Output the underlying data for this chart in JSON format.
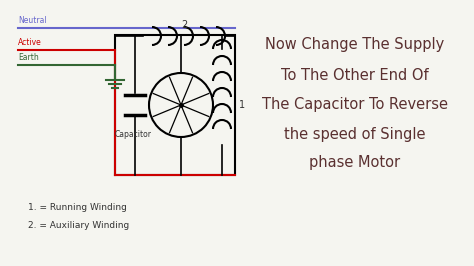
{
  "bg_color": "#f5f5f0",
  "border_color": "#000000",
  "neutral_color": "#6666cc",
  "active_color": "#cc0000",
  "earth_color": "#336633",
  "wire_color": "#000000",
  "coil_color": "#000000",
  "capacitor_color": "#000000",
  "motor_color": "#000000",
  "text_color": "#5a3030",
  "label_color": "#333333",
  "neutral_label": "Neutral",
  "active_label": "Active",
  "earth_label": "Earth",
  "capacitor_label": "Capacitor",
  "legend1": "1. = Running Winding",
  "legend2": "2. = Auxiliary Winding",
  "main_text_line1": "Now Change The Supply",
  "main_text_line2": "To The Other End Of",
  "main_text_line3": "The Capacitor To Reverse",
  "main_text_line4": "the speed of Single",
  "main_text_line5": "phase Motor",
  "label1": "1",
  "label2": "2",
  "figwidth": 4.74,
  "figheight": 2.66,
  "dpi": 100
}
